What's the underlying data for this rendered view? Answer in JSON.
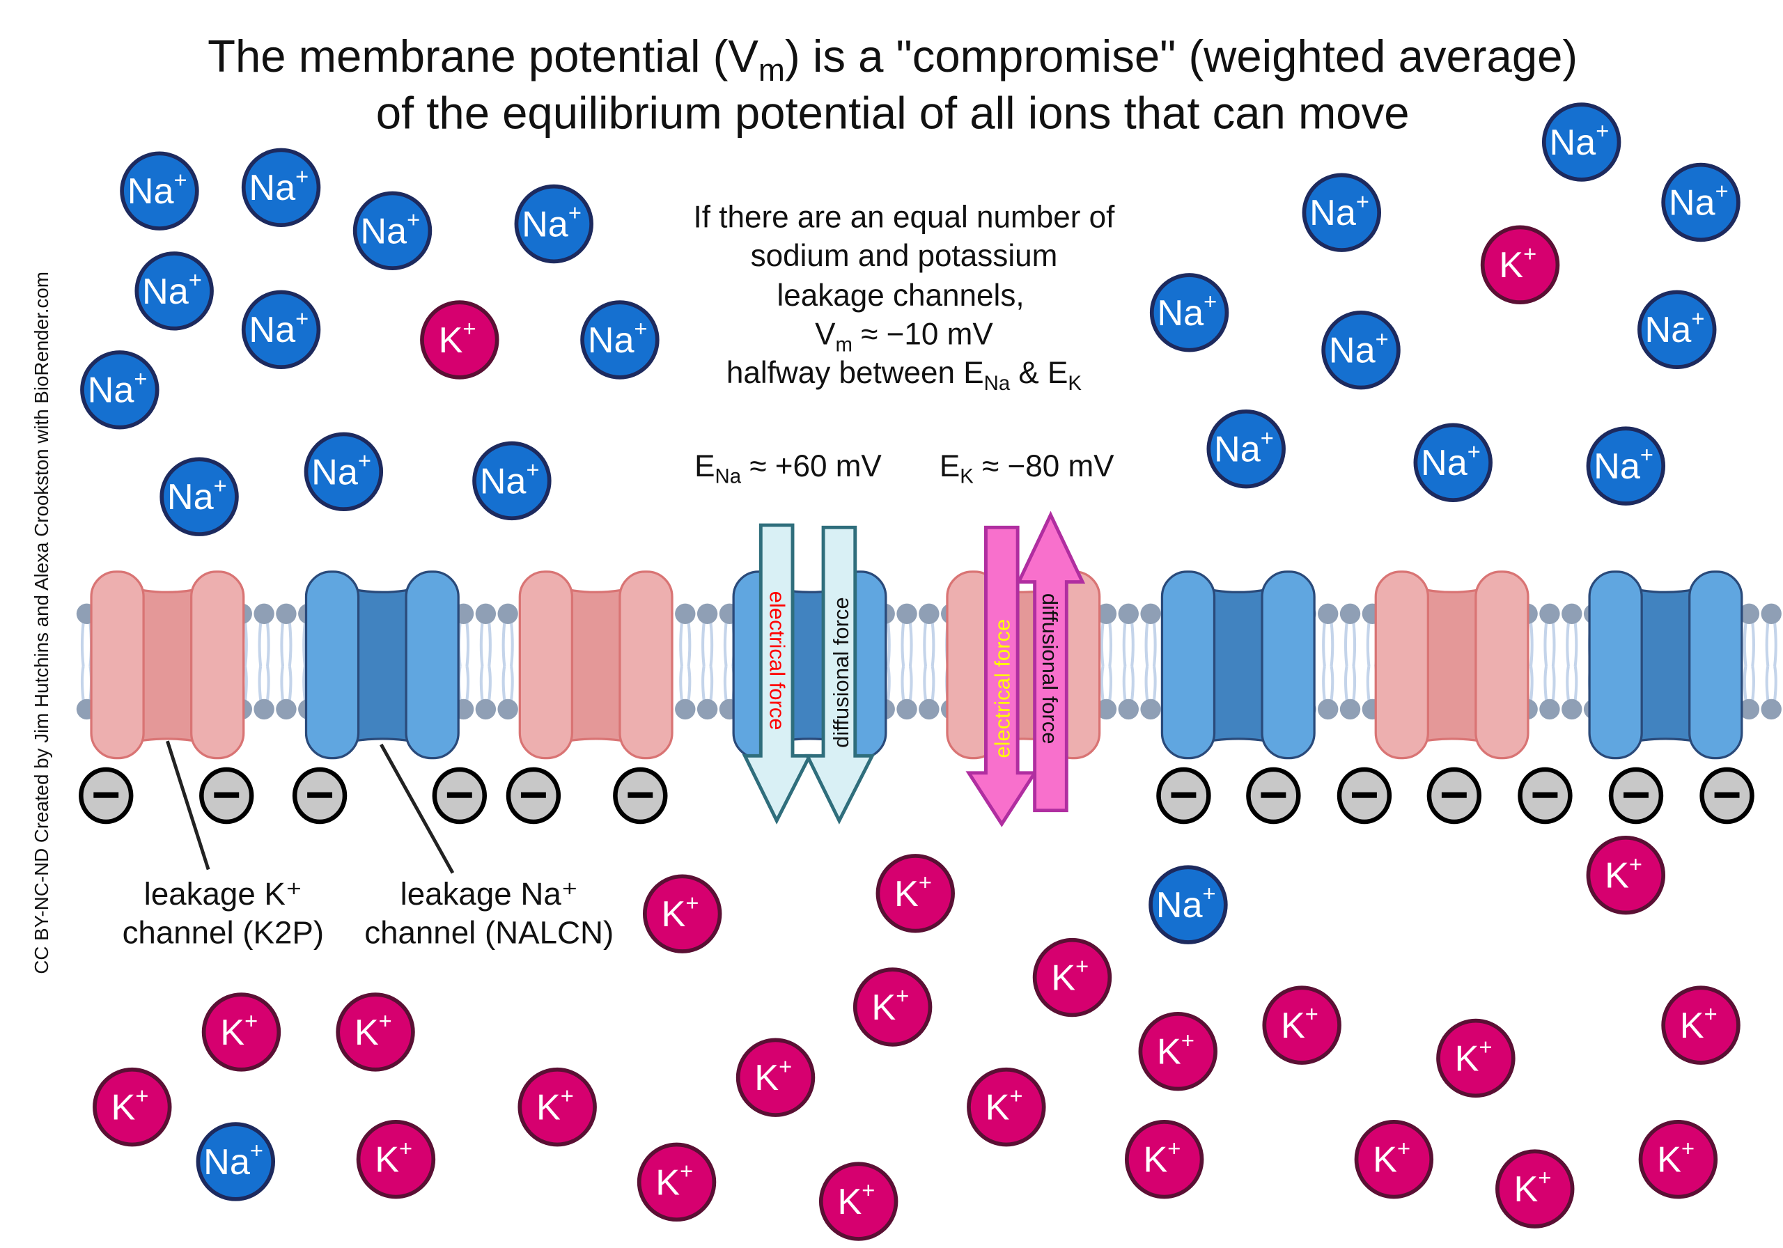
{
  "title": {
    "line1_pre": "The membrane potential (V",
    "line1_sub": "m",
    "line1_post": ") is a \"compromise\" (weighted average)",
    "line2": "of the equilibrium potential of all ions that can move"
  },
  "info": {
    "line1": "If there are an equal number of",
    "line2": "sodium and potassium",
    "line3": "leakage channels,",
    "line4_pre": "V",
    "line4_sub": "m",
    "line4_post": " ≈ −10 mV",
    "line5_pre": "halfway between E",
    "line5_sub1": "Na",
    "line5_mid": " & E",
    "line5_sub2": "K"
  },
  "potentials": {
    "ena_pre": "E",
    "ena_sub": "Na",
    "ena_post": " ≈ +60 mV",
    "ek_pre": "E",
    "ek_sub": "K",
    "ek_post": " ≈ −80 mV"
  },
  "arrows": {
    "na_electrical": "electrical force",
    "na_diffusional": "diffusional force",
    "k_electrical": "electrical force",
    "k_diffusional": "diffusional force"
  },
  "labels": {
    "k_channel_line1": "leakage K⁺",
    "k_channel_line2": "channel (K2P)",
    "na_channel_line1": "leakage Na⁺",
    "na_channel_line2": "channel (NALCN)"
  },
  "ions": {
    "na": "Na",
    "k": "K",
    "charge": "+"
  },
  "credit": "CC BY-NC-ND Created by Jim Hutchins and Alexa Crookston with BioRender.com",
  "colors": {
    "sodium_ion": "#1570d0",
    "potassium_ion": "#d6006f",
    "k_channel": "#edafaf",
    "na_channel": "#60a6e0",
    "na_arrows": "#d9f0f5",
    "k_arrows": "#f870cc",
    "electrical_na_text": "#ff0000",
    "electrical_k_text": "#ffff00"
  }
}
